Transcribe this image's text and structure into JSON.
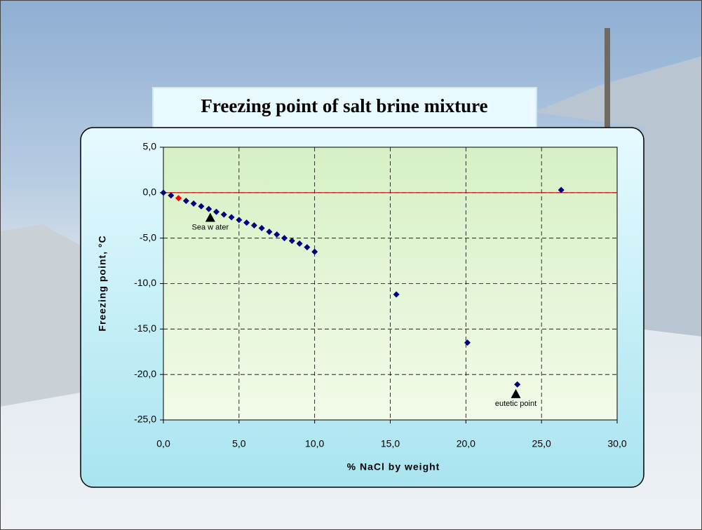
{
  "chart_data": {
    "type": "scatter",
    "title": "Freezing point of salt brine mixture",
    "x_label": "% NaCl by weight",
    "y_label": "Freezing point, °C",
    "series": [
      {
        "color": "#000080",
        "x": [
          0,
          0.5,
          1,
          1.5,
          2,
          2.5,
          3,
          3.5,
          4,
          4.5,
          5,
          5.5,
          6,
          6.5,
          7,
          7.5,
          8,
          8.5,
          9,
          9.5,
          10,
          15.4,
          20.1,
          23.4,
          26.3
        ],
        "values": [
          0,
          -0.3,
          -0.6,
          -0.9,
          -1.2,
          -1.5,
          -1.8,
          -2.1,
          -2.4,
          -2.7,
          -3.0,
          -3.3,
          -3.6,
          -3.9,
          -4.3,
          -4.6,
          -5.0,
          -5.3,
          -5.6,
          -6.0,
          -6.5,
          -11.2,
          -16.5,
          -21.1,
          0.3
        ]
      }
    ],
    "highlight_index": 2,
    "highlight_color": "#ff0000",
    "reference_line": {
      "y": 0,
      "color": "#cc0000"
    },
    "annotations": [
      {
        "text": "Sea w ater",
        "x": 3.1,
        "y": -2.2
      },
      {
        "text": "eutetic point",
        "x": 23.3,
        "y": -21.6
      }
    ],
    "xlim": [
      0,
      30
    ],
    "ylim": [
      -25,
      5
    ],
    "xticks": [
      {
        "value": 0,
        "label": "0,0"
      },
      {
        "value": 5,
        "label": "5,0"
      },
      {
        "value": 10,
        "label": "10,0"
      },
      {
        "value": 15,
        "label": "15,0"
      },
      {
        "value": 20,
        "label": "20,0"
      },
      {
        "value": 25,
        "label": "25,0"
      },
      {
        "value": 30,
        "label": "30,0"
      }
    ],
    "yticks": [
      {
        "value": -25,
        "label": "-25,0"
      },
      {
        "value": -20,
        "label": "-20,0"
      },
      {
        "value": -15,
        "label": "-15,0"
      },
      {
        "value": -10,
        "label": "-10,0"
      },
      {
        "value": -5,
        "label": "-5,0"
      },
      {
        "value": 0,
        "label": "0,0"
      },
      {
        "value": 5,
        "label": "5,0"
      }
    ],
    "grid": true
  }
}
